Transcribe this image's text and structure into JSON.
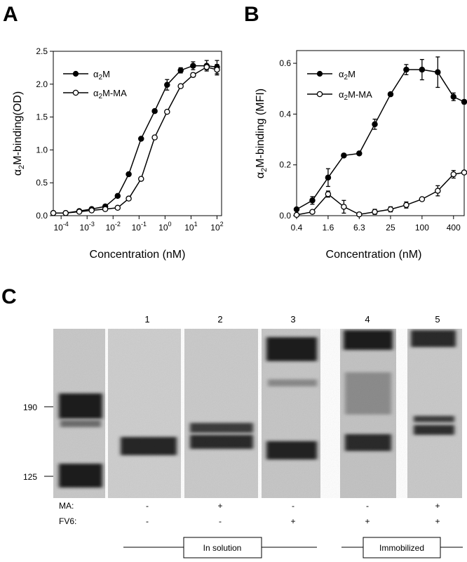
{
  "panel_labels": {
    "A": "A",
    "B": "B",
    "C": "C"
  },
  "chart_data": [
    {
      "type": "line",
      "panel": "A",
      "xscale": "log",
      "xlim": [
        5e-05,
        150
      ],
      "ylim": [
        0,
        2.5
      ],
      "xlabel": "Concentration (nM)",
      "ylabel_parts": {
        "pre": "α",
        "sub": "2",
        "post": "M-binding(OD)"
      },
      "xticks": [
        {
          "v": 0.0001,
          "base": "10",
          "exp": "-4"
        },
        {
          "v": 0.001,
          "base": "10",
          "exp": "-3"
        },
        {
          "v": 0.01,
          "base": "10",
          "exp": "-2"
        },
        {
          "v": 0.1,
          "base": "10",
          "exp": "-1"
        },
        {
          "v": 1,
          "base": "10",
          "exp": "0"
        },
        {
          "v": 10,
          "base": "10",
          "exp": "1"
        },
        {
          "v": 100,
          "base": "10",
          "exp": "2"
        }
      ],
      "yticks": [
        "0.0",
        "0.5",
        "1.0",
        "1.5",
        "2.0",
        "2.5"
      ],
      "legend_position": "top-left",
      "series": [
        {
          "name_parts": {
            "pre": "α",
            "sub": "2",
            "post": "M"
          },
          "marker": "filled",
          "x": [
            5e-05,
            0.00015,
            0.0005,
            0.0015,
            0.005,
            0.015,
            0.04,
            0.12,
            0.4,
            1.2,
            4,
            12,
            40,
            100
          ],
          "y": [
            0.04,
            0.04,
            0.07,
            0.1,
            0.14,
            0.3,
            0.63,
            1.17,
            1.59,
            1.99,
            2.21,
            2.28,
            2.28,
            2.26
          ],
          "err": [
            0,
            0,
            0,
            0,
            0,
            0,
            0,
            0,
            0,
            0.08,
            0.04,
            0.06,
            0.08,
            0.1
          ]
        },
        {
          "name_parts": {
            "pre": "α",
            "sub": "2",
            "post": "M-MA"
          },
          "marker": "open",
          "x": [
            5e-05,
            0.00015,
            0.0005,
            0.0015,
            0.005,
            0.015,
            0.04,
            0.12,
            0.4,
            1.2,
            4,
            12,
            40,
            100
          ],
          "y": [
            0.04,
            0.04,
            0.06,
            0.08,
            0.1,
            0.12,
            0.26,
            0.56,
            1.19,
            1.58,
            1.97,
            2.14,
            2.26,
            2.22
          ],
          "err": [
            0,
            0,
            0,
            0,
            0,
            0,
            0,
            0,
            0,
            0,
            0,
            0.03,
            0.04,
            0.08
          ]
        }
      ]
    },
    {
      "type": "line",
      "panel": "B",
      "xscale": "log",
      "xlim": [
        0.4,
        640
      ],
      "ylim": [
        0,
        0.65
      ],
      "xlabel": "Concentration (nM)",
      "ylabel_parts": {
        "pre": "α",
        "sub": "2",
        "post": "M-binding (MFI)"
      },
      "xticks": [
        {
          "v": 0.4,
          "label": "0.4"
        },
        {
          "v": 1.6,
          "label": "1.6"
        },
        {
          "v": 6.3,
          "label": "6.3"
        },
        {
          "v": 25,
          "label": "25"
        },
        {
          "v": 100,
          "label": "100"
        },
        {
          "v": 400,
          "label": "400"
        }
      ],
      "yticks": [
        "0.0",
        "0.2",
        "0.4",
        "0.6"
      ],
      "legend_position": "top-left",
      "series": [
        {
          "name_parts": {
            "pre": "α",
            "sub": "2",
            "post": "M"
          },
          "marker": "filled",
          "x": [
            0.4,
            0.8,
            1.6,
            3.2,
            6.3,
            12.5,
            25,
            50,
            100,
            200,
            400,
            640
          ],
          "y": [
            0.025,
            0.06,
            0.15,
            0.237,
            0.245,
            0.36,
            0.478,
            0.575,
            0.575,
            0.565,
            0.468,
            0.448
          ],
          "err": [
            0,
            0.015,
            0.035,
            0,
            0.006,
            0.02,
            0,
            0.02,
            0.04,
            0.06,
            0.015,
            0.008
          ]
        },
        {
          "name_parts": {
            "pre": "α",
            "sub": "2",
            "post": "M-MA"
          },
          "marker": "open",
          "x": [
            0.4,
            0.8,
            1.6,
            3.2,
            6.3,
            12.5,
            25,
            50,
            100,
            200,
            400,
            640
          ],
          "y": [
            0.003,
            0.015,
            0.085,
            0.035,
            0.005,
            0.015,
            0.025,
            0.042,
            0.065,
            0.098,
            0.163,
            0.17
          ],
          "err": [
            0,
            0,
            0.012,
            0.025,
            0,
            0.01,
            0.01,
            0.012,
            0,
            0.02,
            0.015,
            0.005
          ]
        }
      ]
    }
  ],
  "gel": {
    "lane_numbers": [
      "1",
      "2",
      "3",
      "4",
      "5"
    ],
    "markers": [
      "190",
      "125"
    ],
    "condition_labels": {
      "ma": "MA:",
      "fv6": "FV6:"
    },
    "ma_signs": [
      "-",
      "+",
      "-",
      "-",
      "+"
    ],
    "fv6_signs": [
      "-",
      "-",
      "+",
      "+",
      "+"
    ],
    "group_labels": {
      "solution": "In solution",
      "immobilized": "Immobilized"
    }
  }
}
